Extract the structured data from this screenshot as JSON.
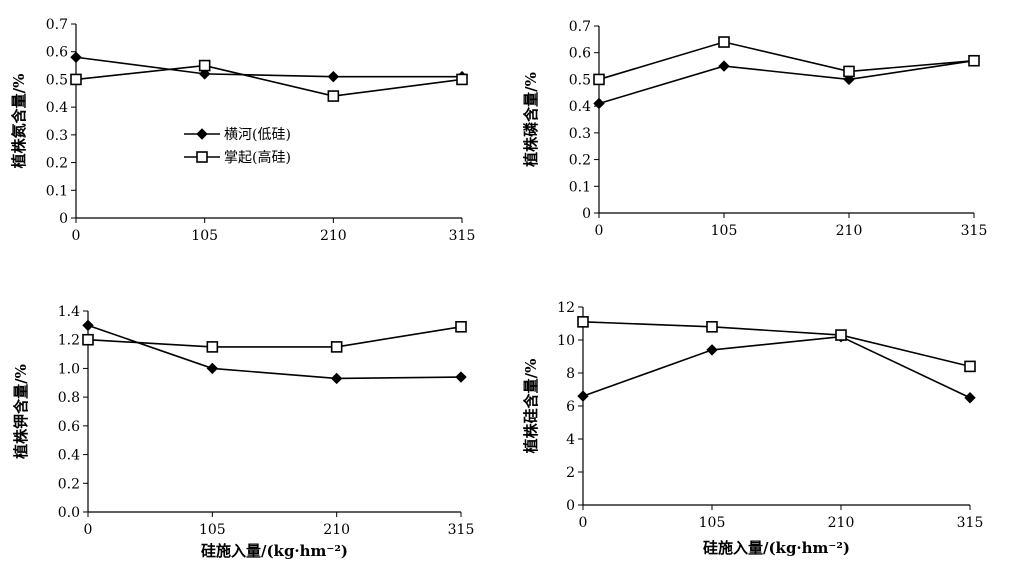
{
  "chart_data": [
    {
      "type": "line",
      "categories": [
        "0",
        "105",
        "210",
        "315"
      ],
      "ylabel": "植株氮含量/%",
      "xlabel": "",
      "ylim": [
        0,
        0.7
      ],
      "yticks": [
        "0",
        "0.1",
        "0.2",
        "0.3",
        "0.4",
        "0.5",
        "0.6",
        "0.7"
      ],
      "legend": "inside-left",
      "series": [
        {
          "name": "横河(低硅)",
          "marker": "diamond",
          "values": [
            0.58,
            0.52,
            0.51,
            0.51
          ]
        },
        {
          "name": "掌起(高硅)",
          "marker": "square",
          "values": [
            0.5,
            0.55,
            0.44,
            0.5
          ]
        }
      ]
    },
    {
      "type": "line",
      "categories": [
        "0",
        "105",
        "210",
        "315"
      ],
      "ylabel": "植株磷含量/%",
      "xlabel": "",
      "ylim": [
        0,
        0.7
      ],
      "yticks": [
        "0",
        "0.1",
        "0.2",
        "0.3",
        "0.4",
        "0.5",
        "0.6",
        "0.7"
      ],
      "series": [
        {
          "name": "横河(低硅)",
          "marker": "diamond",
          "values": [
            0.41,
            0.55,
            0.5,
            0.57
          ]
        },
        {
          "name": "掌起(高硅)",
          "marker": "square",
          "values": [
            0.5,
            0.64,
            0.53,
            0.57
          ]
        }
      ]
    },
    {
      "type": "line",
      "categories": [
        "0",
        "105",
        "210",
        "315"
      ],
      "ylabel": "植株钾含量/%",
      "xlabel": "硅施入量/(kg·hm⁻²)",
      "ylim": [
        0,
        1.4
      ],
      "yticks": [
        "0.0",
        "0.2",
        "0.4",
        "0.6",
        "0.8",
        "1.0",
        "1.2",
        "1.4"
      ],
      "series": [
        {
          "name": "横河(低硅)",
          "marker": "diamond",
          "values": [
            1.3,
            1.0,
            0.93,
            0.94
          ]
        },
        {
          "name": "掌起(高硅)",
          "marker": "square",
          "values": [
            1.2,
            1.15,
            1.15,
            1.29
          ]
        }
      ]
    },
    {
      "type": "line",
      "categories": [
        "0",
        "105",
        "210",
        "315"
      ],
      "ylabel": "植株硅含量/%",
      "xlabel": "硅施入量/(kg·hm⁻²)",
      "ylim": [
        0,
        12
      ],
      "yticks": [
        "0",
        "2",
        "4",
        "6",
        "8",
        "10",
        "12"
      ],
      "series": [
        {
          "name": "横河(低硅)",
          "marker": "diamond",
          "values": [
            6.6,
            9.4,
            10.2,
            6.5
          ]
        },
        {
          "name": "掌起(高硅)",
          "marker": "square",
          "values": [
            11.1,
            10.8,
            10.3,
            8.4
          ]
        }
      ]
    }
  ]
}
